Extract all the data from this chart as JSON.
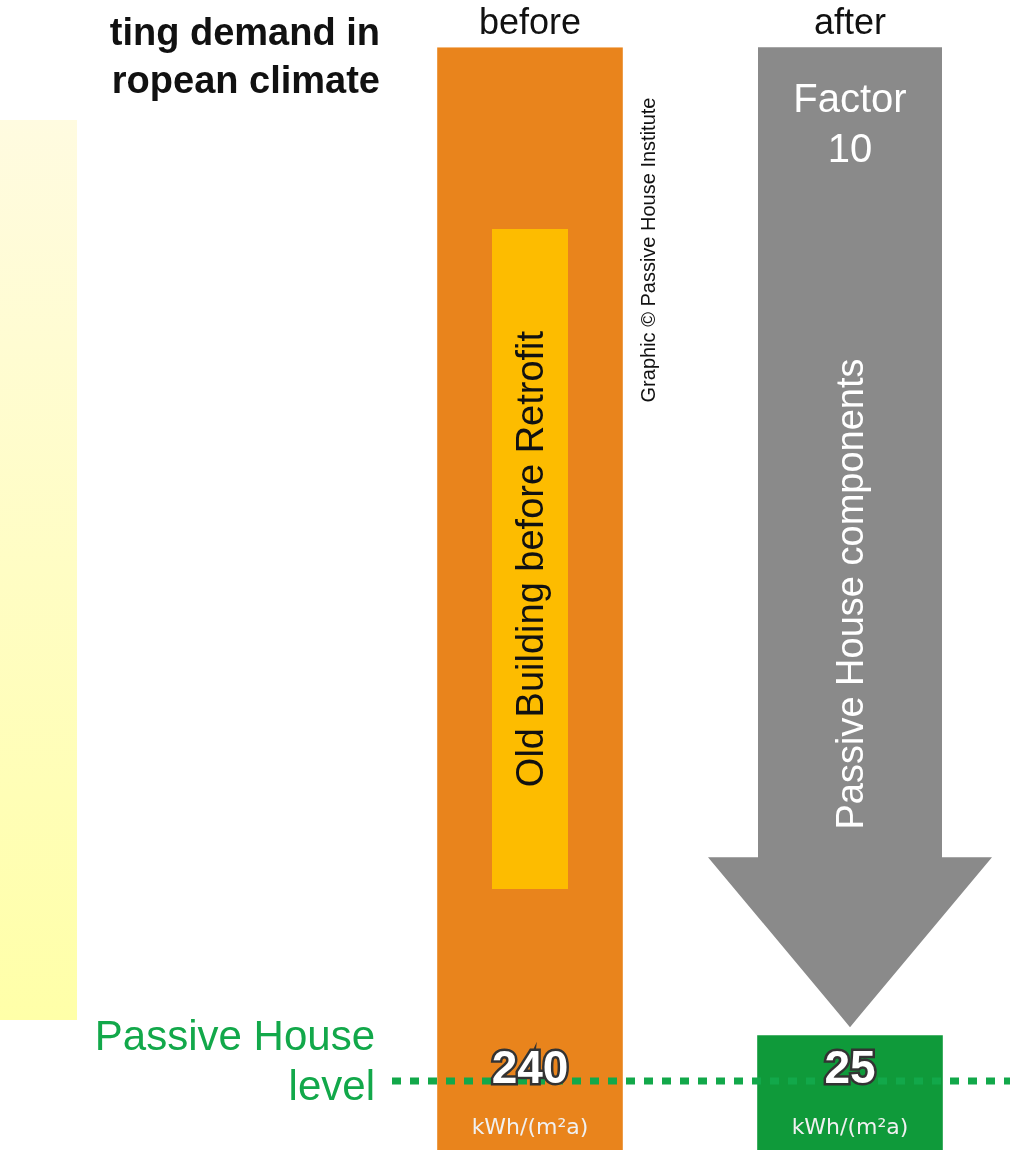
{
  "chart_data": {
    "type": "bar",
    "title": "ting demand in\nropean climate",
    "categories": [
      "before",
      "after"
    ],
    "values": [
      240,
      25
    ],
    "colors": [
      "#e9841c",
      "#0f9a3a"
    ],
    "value_labels": [
      "240",
      "25"
    ],
    "ylim": [
      0,
      240
    ],
    "tick_labels": "x",
    "grid": false,
    "legend": false,
    "ref_lines": [
      {
        "axis": "y",
        "value": 15,
        "label": "Passive House level",
        "color": "#12a84a",
        "line_style": "dotted"
      }
    ],
    "annotations": [
      "Old Building  before Retrofit",
      "Graphic © Passive House Institute",
      "Factor 10",
      "Passive House components",
      "kWh/(m²a)",
      "kWh/(m²a)"
    ]
  }
}
